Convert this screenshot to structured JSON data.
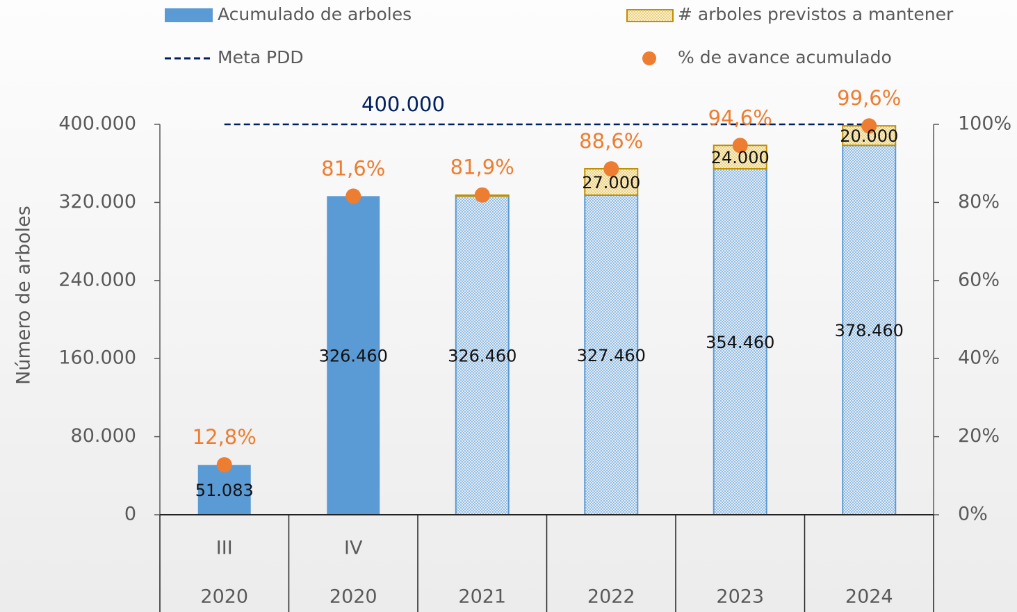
{
  "chart_data": {
    "type": "bar",
    "y_label": "Número de arboles",
    "categories": [
      "III",
      "IV",
      null,
      null,
      null,
      null
    ],
    "years": [
      "2020",
      "2020",
      "2021",
      "2022",
      "2023",
      "2024"
    ],
    "ylim": [
      0,
      400000
    ],
    "yticks": [
      0,
      {
        "value": 80000,
        "label": "80.000"
      },
      {
        "value": 160000,
        "label": "160.000"
      },
      {
        "value": 240000,
        "label": "240.000"
      },
      {
        "value": 320000,
        "label": "320.000"
      },
      {
        "value": 400000,
        "label": "400.000"
      }
    ],
    "y2lim": [
      0,
      100
    ],
    "y2ticks": [
      {
        "value": 0,
        "label": "0%"
      },
      {
        "value": 20,
        "label": "20%"
      },
      {
        "value": 40,
        "label": "40%"
      },
      {
        "value": 60,
        "label": "60%"
      },
      {
        "value": 80,
        "label": "80%"
      },
      {
        "value": 100,
        "label": "100%"
      }
    ],
    "series": [
      {
        "name": "Acumulado de arboles",
        "type": "bar",
        "color": "#5b9bd5",
        "values": [
          51083,
          326460,
          326460,
          327460,
          354460,
          378460
        ],
        "value_labels": [
          "51.083",
          "326.460",
          "326.460",
          "327.460",
          "354.460",
          "378.460"
        ],
        "styles": [
          "solid",
          "solid",
          "dotted",
          "dotted",
          "dotted",
          "dotted"
        ]
      },
      {
        "name": "# arboles previstos a mantener",
        "type": "bar",
        "color": "#ffe699",
        "edge_color": "#bf9000",
        "values": [
          null,
          null,
          1000,
          27000,
          24000,
          20000
        ],
        "value_labels": [
          null,
          null,
          null,
          "27.000",
          "24.000",
          "20.000"
        ]
      },
      {
        "name": "Meta PDD",
        "type": "line",
        "color": "#002060",
        "values": [
          400000,
          400000,
          400000,
          400000,
          400000,
          400000
        ],
        "value_label": "400.000"
      },
      {
        "name": "% de avance acumulado",
        "type": "scatter",
        "axis": "y2",
        "color": "#ed7d31",
        "values": [
          12.8,
          81.6,
          81.9,
          88.6,
          94.6,
          99.6
        ],
        "value_labels": [
          "12,8%",
          "81,6%",
          "81,9%",
          "88,6%",
          "94,6%",
          "99,6%"
        ]
      }
    ]
  }
}
